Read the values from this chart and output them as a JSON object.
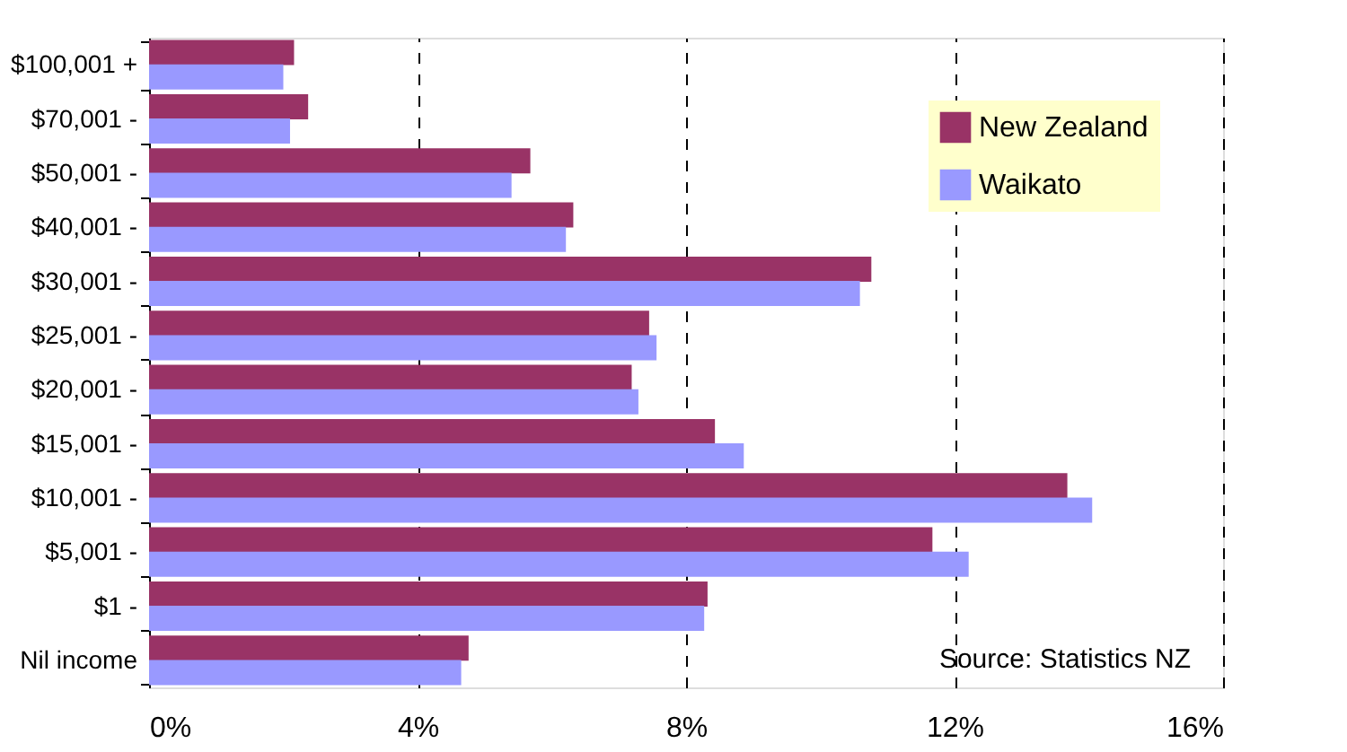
{
  "chart_data": {
    "type": "bar",
    "orientation": "horizontal",
    "categories": [
      "$100,001 +",
      "$70,001 -",
      "$50,001 -",
      "$40,001 -",
      "$30,001 -",
      "$25,001 -",
      "$20,001 -",
      "$15,001 -",
      "$10,001 -",
      "$5,001 -",
      "$1 -",
      "Nil income"
    ],
    "series": [
      {
        "name": "New Zealand",
        "color": "#993366",
        "values": [
          2.16,
          2.37,
          5.68,
          6.32,
          10.76,
          7.45,
          7.19,
          8.43,
          13.68,
          11.67,
          8.32,
          4.76
        ]
      },
      {
        "name": "Waikato",
        "color": "#9999ff",
        "values": [
          2.0,
          2.1,
          5.4,
          6.21,
          10.59,
          7.56,
          7.29,
          8.86,
          14.05,
          12.21,
          8.27,
          4.65
        ]
      }
    ],
    "xlim": [
      0,
      16
    ],
    "xticks": [
      {
        "value": 0,
        "label": "0%"
      },
      {
        "value": 4,
        "label": "4%"
      },
      {
        "value": 8,
        "label": "8%"
      },
      {
        "value": 12,
        "label": "12%"
      },
      {
        "value": 16,
        "label": "16%"
      }
    ],
    "grid": "x",
    "legend": "top right",
    "annotations": [
      "Source: Statistics NZ"
    ]
  }
}
